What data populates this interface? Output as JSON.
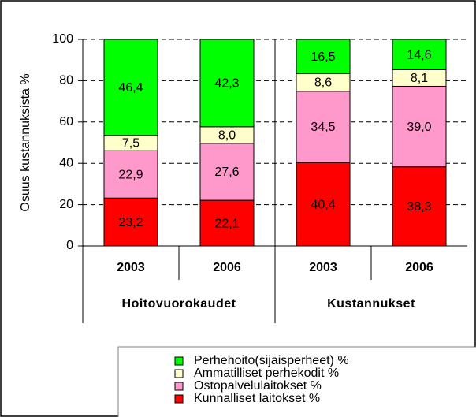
{
  "chart_data": {
    "type": "stacked_bar",
    "ylabel": "Osuus kustannuksista %",
    "categories": [
      "2003",
      "2006",
      "2003",
      "2006"
    ],
    "groups": [
      "Hoitovuorokaudet",
      "Kustannukset"
    ],
    "ylim": [
      0,
      100
    ],
    "yticks": [
      0,
      20,
      40,
      60,
      80,
      100
    ],
    "grid": true,
    "series": [
      {
        "name": "Kunnalliset laitokset %",
        "color": "#ff0000",
        "values": [
          23.2,
          22.1,
          40.4,
          38.3
        ],
        "value_labels": [
          "23,2",
          "22,1",
          "40,4",
          "38,3"
        ]
      },
      {
        "name": "Ostopalvelulaitokset %",
        "color": "#ff99cc",
        "values": [
          22.9,
          27.6,
          34.5,
          39.0
        ],
        "value_labels": [
          "22,9",
          "27,6",
          "34,5",
          "39,0"
        ]
      },
      {
        "name": "Ammatilliset perhekodit %",
        "color": "#ffffcc",
        "values": [
          7.5,
          8.0,
          8.6,
          8.1
        ],
        "value_labels": [
          "7,5",
          "8,0",
          "8,6",
          "8,1"
        ]
      },
      {
        "name": "Perhehoito(sijaisperheet) %",
        "color": "#00ff00",
        "values": [
          46.4,
          42.3,
          16.5,
          14.6
        ],
        "value_labels": [
          "46,4",
          "42,3",
          "16,5",
          "14,6"
        ]
      }
    ]
  }
}
